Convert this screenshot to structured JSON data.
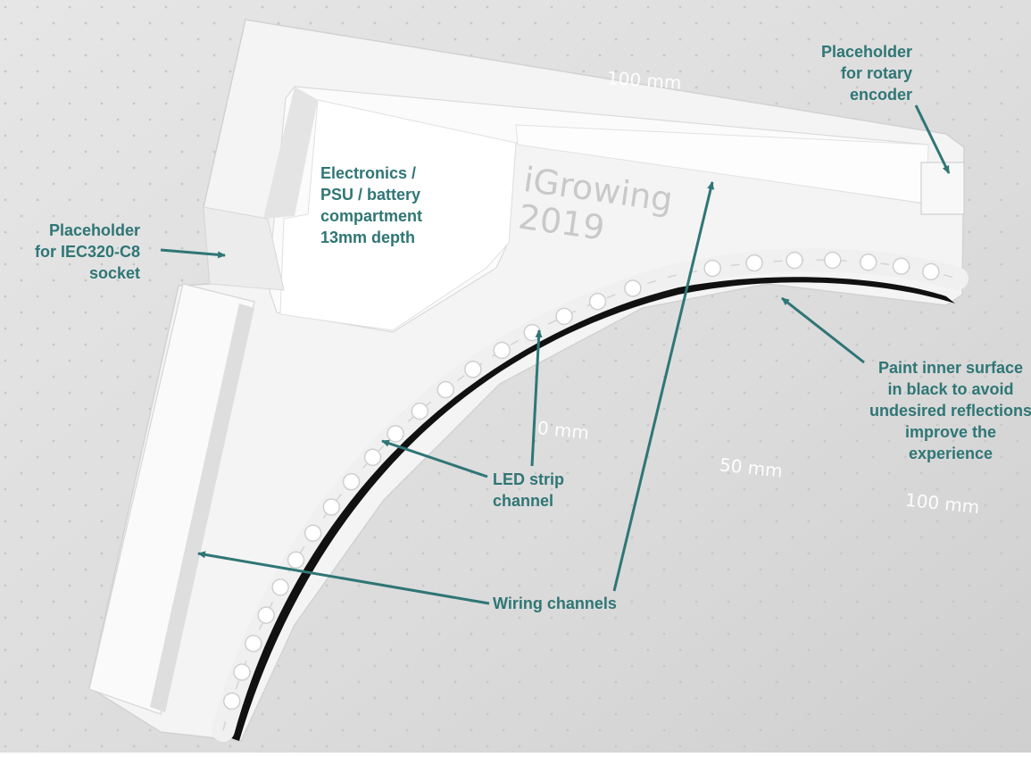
{
  "annotations": {
    "rotary_encoder": "Placeholder\nfor rotary\nencoder",
    "iec_socket": "Placeholder\nfor IEC320-C8\nsocket",
    "electronics": "Electronics /\nPSU / battery\ncompartment\n13mm depth",
    "paint_inner": "Paint inner surface\nin black to avoid\nundesired reflections\nimprove the\nexperience",
    "led_strip": "LED strip\nchannel",
    "wiring": "Wiring channels"
  },
  "dimension_labels": {
    "top": "100 mm",
    "zero": "0 mm",
    "fifty": "50 mm",
    "hundred": "100 mm"
  },
  "model_text": {
    "brand": "iGrowing\n2019"
  },
  "colors": {
    "annotation": "#2f7675",
    "background": "#d9d9d9",
    "part": "#f7f7f7",
    "dimension_text": "#ffffff"
  }
}
